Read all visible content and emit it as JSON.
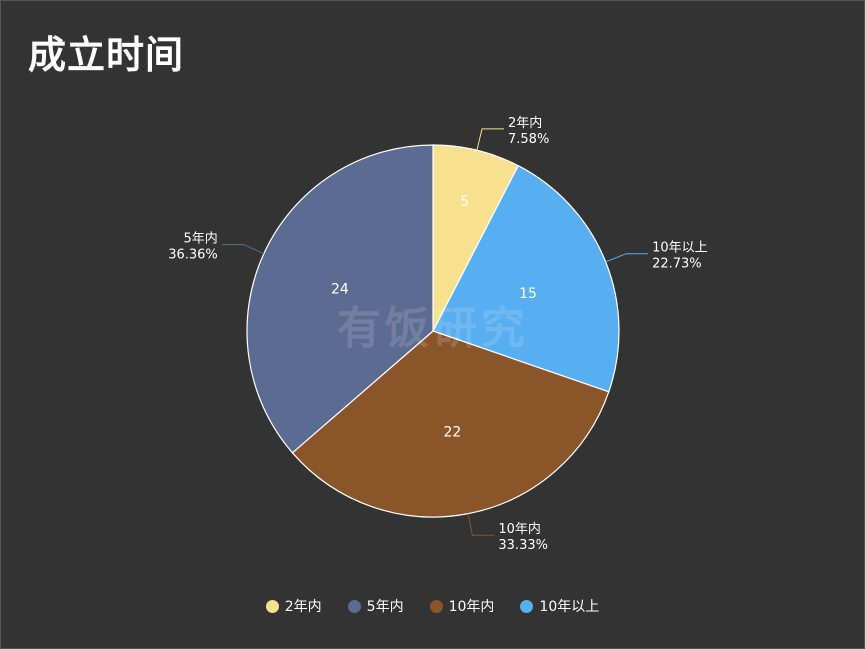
{
  "title": "成立时间",
  "watermark": "有饭研究",
  "chart_data": {
    "type": "pie",
    "title": "成立时间",
    "slices": [
      {
        "label": "2年内",
        "value": 5,
        "percent": "7.58%",
        "color": "#f7e08e"
      },
      {
        "label": "10年以上",
        "value": 15,
        "percent": "22.73%",
        "color": "#57aef0"
      },
      {
        "label": "10年内",
        "value": 22,
        "percent": "33.33%",
        "color": "#8b552a"
      },
      {
        "label": "5年内",
        "value": 24,
        "percent": "36.36%",
        "color": "#5c6b91"
      }
    ],
    "legend": {
      "position": "bottom",
      "order": [
        "2年内",
        "5年内",
        "10年内",
        "10年以上"
      ]
    }
  },
  "legend_items": [
    {
      "label": "2年内",
      "color": "#f7e08e"
    },
    {
      "label": "5年内",
      "color": "#5c6b91"
    },
    {
      "label": "10年内",
      "color": "#8b552a"
    },
    {
      "label": "10年以上",
      "color": "#57aef0"
    }
  ]
}
